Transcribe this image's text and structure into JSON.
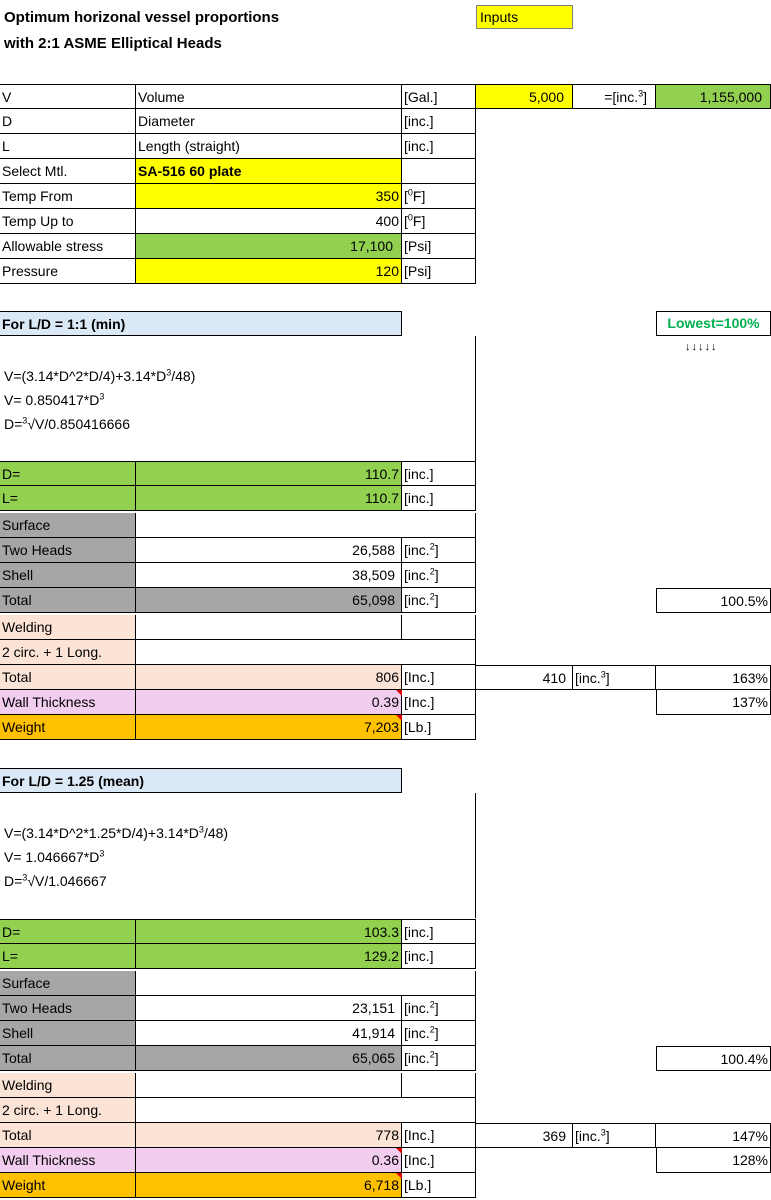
{
  "title": {
    "line1": "Optimum horizonal vessel proportions",
    "line2": "with 2:1 ASME Elliptical Heads",
    "inputs_badge": "Inputs"
  },
  "inputs": {
    "rows": [
      {
        "sym": "V",
        "label": "Volume",
        "unit": "[Gal.]"
      },
      {
        "sym": "D",
        "label": "Diameter",
        "unit": "[inc.]"
      },
      {
        "sym": "L",
        "label": "Length (straight)",
        "unit": "[inc.]"
      }
    ],
    "volume_value": "5,000",
    "volume_conv_prefix": "=[inc.",
    "volume_conv_sup": "3",
    "volume_conv_suffix": "]",
    "volume_conv_value": "1,155,000",
    "material_label": "Select Mtl.",
    "material_value": "SA-516 60 plate",
    "temp_from_label": "Temp From",
    "temp_from_value": "350",
    "temp_upto_label": "Temp  Up to",
    "temp_upto_value": "400",
    "temp_unit_prefix": "[",
    "temp_unit_sup": "0",
    "temp_unit_suffix": "F]",
    "stress_label": "Allowable stress",
    "stress_value": "17,100",
    "stress_unit": "[Psi]",
    "pressure_label": "Pressure",
    "pressure_value": "120",
    "pressure_unit": "[Psi]"
  },
  "lowest_badge": "Lowest=100%",
  "lowest_arrows": "↓↓↓↓↓",
  "sections": [
    {
      "header": "For L/D = 1:1 (min)",
      "f1_pre": "V=(3.14*D^2*D/4)+3.14*D",
      "f1_post": "/48)",
      "f2_pre": "V= 0.850417*D",
      "f3_pre": "D=",
      "f3_post": "√V/0.850416666",
      "exp": "3",
      "d_label": "D=",
      "d_value": "110.7",
      "d_unit": "[inc.]",
      "l_label": "L=",
      "l_value": "110.7",
      "l_unit": "[inc.]",
      "surface_label": "Surface",
      "heads_label": "Two Heads",
      "heads_value": "26,588",
      "shell_label": "Shell",
      "shell_value": "38,509",
      "total_label": "Total",
      "total_value": "65,098",
      "area_unit_pre": "[inc.",
      "area_sup": "2",
      "area_unit_post": "]",
      "total_pct": "100.5%",
      "welding_label": "Welding",
      "circ_label": "2 circ. + 1 Long.",
      "weld_total_label": "Total",
      "weld_total_value": "806",
      "weld_unit": "[Inc.]",
      "weld_vol_value": "410",
      "vol_unit_pre": "[inc.",
      "vol_sup": "3",
      "vol_unit_post": "]",
      "weld_pct": "163%",
      "wall_label": "Wall Thickness",
      "wall_value": "0.39",
      "wall_unit": "[Inc.]",
      "wall_pct": "137%",
      "weight_label": "Weight",
      "weight_value": "7,203",
      "weight_unit": "[Lb.]"
    },
    {
      "header": "For L/D = 1.25 (mean)",
      "f1_pre": "V=(3.14*D^2*1.25*D/4)+3.14*D",
      "f1_post": "/48)",
      "f2_pre": "V= 1.046667*D",
      "f3_pre": "D=",
      "f3_post": "√V/1.046667",
      "exp": "3",
      "d_label": "D=",
      "d_value": "103.3",
      "d_unit": "[inc.]",
      "l_label": "L=",
      "l_value": "129.2",
      "l_unit": "[inc.]",
      "surface_label": "Surface",
      "heads_label": "Two Heads",
      "heads_value": "23,151",
      "shell_label": "Shell",
      "shell_value": "41,914",
      "total_label": "Total",
      "total_value": "65,065",
      "area_unit_pre": "[inc.",
      "area_sup": "2",
      "area_unit_post": "]",
      "total_pct": "100.4%",
      "welding_label": "Welding",
      "circ_label": "2 circ. + 1 Long.",
      "weld_total_label": "Total",
      "weld_total_value": "778",
      "weld_unit": "[Inc.]",
      "weld_vol_value": "369",
      "vol_unit_pre": "[inc.",
      "vol_sup": "3",
      "vol_unit_post": "]",
      "weld_pct": "147%",
      "wall_label": "Wall Thickness",
      "wall_value": "0.36",
      "wall_unit": "[Inc.]",
      "wall_pct": "128%",
      "weight_label": "Weight",
      "weight_value": "6,718",
      "weight_unit": "[Lb.]"
    }
  ]
}
